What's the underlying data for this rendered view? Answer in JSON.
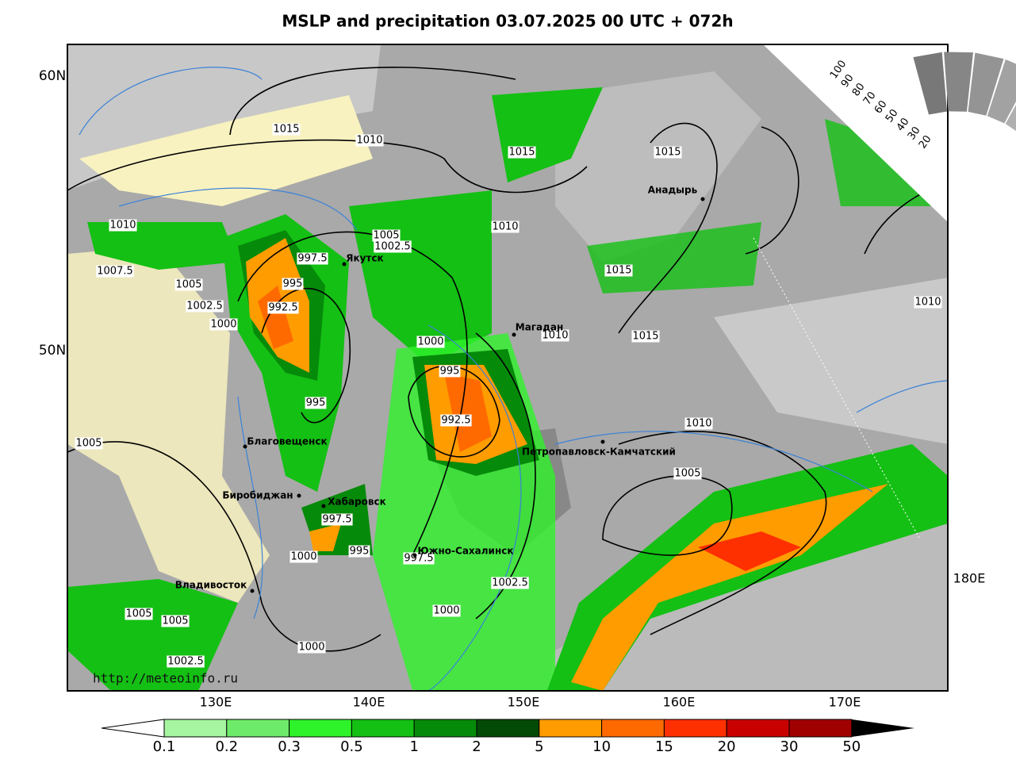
{
  "title": "MSLP and precipitation 03.07.2025 00 UTC + 072h",
  "lat_labels": [
    "60N",
    "50N"
  ],
  "lon_labels": [
    "130E",
    "140E",
    "150E",
    "160E",
    "170E",
    "180E"
  ],
  "isobar_labels": [
    1015,
    1010,
    1015,
    1015,
    1010,
    1005,
    1002.5,
    1010,
    997.5,
    1007.5,
    1005,
    995,
    1015,
    1002.5,
    992.5,
    1010,
    1000,
    1010,
    1015,
    1000,
    995,
    995,
    992.5,
    1010,
    1005,
    1005,
    997.5,
    1000,
    995,
    997.5,
    1002.5,
    1005,
    1005,
    1000,
    1000,
    1002.5
  ],
  "cities": [
    "Якутск",
    "Анадырь",
    "Магадан",
    "Благовещенск",
    "Петропавловск-Камчатский",
    "Биробиджан",
    "Хабаровск",
    "Южно-Сахалинск",
    "Владивосток"
  ],
  "url": "http://meteoinfo.ru",
  "cloud_scale": [
    100,
    90,
    80,
    70,
    60,
    50,
    40,
    30,
    20
  ],
  "legend": {
    "thresholds": [
      0.1,
      0.2,
      0.3,
      0.5,
      1,
      2,
      5,
      10,
      15,
      20,
      30,
      50
    ],
    "colors": [
      "#a6f5a0",
      "#6eea6a",
      "#2ef22a",
      "#14c014",
      "#068a0a",
      "#034a06",
      "#ff9c00",
      "#ff6a00",
      "#ff3000",
      "#c80000",
      "#a00000"
    ]
  }
}
